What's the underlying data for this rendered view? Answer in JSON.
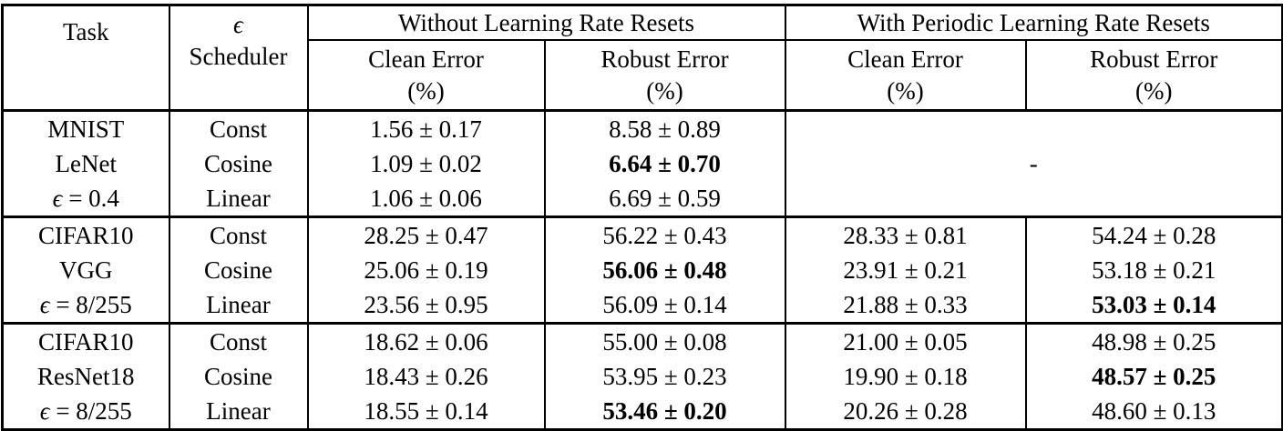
{
  "table": {
    "header": {
      "task": "Task",
      "scheduler": [
        "ϵ",
        "Scheduler"
      ],
      "groups": [
        "Without Learning Rate Resets",
        "With Periodic Learning Rate Resets"
      ],
      "subcolumns": [
        "Clean Error",
        "Robust Error",
        "Clean Error",
        "Robust Error"
      ],
      "unit": "(%)"
    },
    "body": [
      {
        "task_lines": [
          "MNIST",
          "LeNet",
          "ϵ = 0.4"
        ],
        "rows": [
          {
            "scheduler": "Const",
            "cells": [
              {
                "v": "1.56 ± 0.17"
              },
              {
                "v": "8.58 ± 0.89"
              }
            ]
          },
          {
            "scheduler": "Cosine",
            "cells": [
              {
                "v": "1.09 ± 0.02"
              },
              {
                "v": "6.64 ± 0.70",
                "b": true
              }
            ]
          },
          {
            "scheduler": "Linear",
            "cells": [
              {
                "v": "1.06 ± 0.06"
              },
              {
                "v": "6.69 ± 0.59"
              }
            ]
          }
        ],
        "merged_with": "-"
      },
      {
        "task_lines": [
          "CIFAR10",
          "VGG",
          "ϵ = 8/255"
        ],
        "rows": [
          {
            "scheduler": "Const",
            "cells": [
              {
                "v": "28.25 ± 0.47"
              },
              {
                "v": "56.22 ± 0.43"
              },
              {
                "v": "28.33 ± 0.81"
              },
              {
                "v": "54.24 ± 0.28"
              }
            ]
          },
          {
            "scheduler": "Cosine",
            "cells": [
              {
                "v": "25.06 ± 0.19"
              },
              {
                "v": "56.06 ± 0.48",
                "b": true
              },
              {
                "v": "23.91 ± 0.21"
              },
              {
                "v": "53.18 ± 0.21"
              }
            ]
          },
          {
            "scheduler": "Linear",
            "cells": [
              {
                "v": "23.56 ± 0.95"
              },
              {
                "v": "56.09 ± 0.14"
              },
              {
                "v": "21.88 ± 0.33"
              },
              {
                "v": "53.03 ± 0.14",
                "b": true
              }
            ]
          }
        ]
      },
      {
        "task_lines": [
          "CIFAR10",
          "ResNet18",
          "ϵ = 8/255"
        ],
        "rows": [
          {
            "scheduler": "Const",
            "cells": [
              {
                "v": "18.62 ± 0.06"
              },
              {
                "v": "55.00 ± 0.08"
              },
              {
                "v": "21.00 ± 0.05"
              },
              {
                "v": "48.98 ± 0.25"
              }
            ]
          },
          {
            "scheduler": "Cosine",
            "cells": [
              {
                "v": "18.43 ± 0.26"
              },
              {
                "v": "53.95 ± 0.23"
              },
              {
                "v": "19.90 ± 0.18"
              },
              {
                "v": "48.57 ± 0.25",
                "b": true
              }
            ]
          },
          {
            "scheduler": "Linear",
            "cells": [
              {
                "v": "18.55 ± 0.14"
              },
              {
                "v": "53.46 ± 0.20",
                "b": true
              },
              {
                "v": "20.26 ± 0.28"
              },
              {
                "v": "48.60 ± 0.13"
              }
            ]
          }
        ]
      }
    ],
    "colors": {
      "text": "#000000",
      "border": "#000000",
      "background": "#ffffff"
    }
  }
}
